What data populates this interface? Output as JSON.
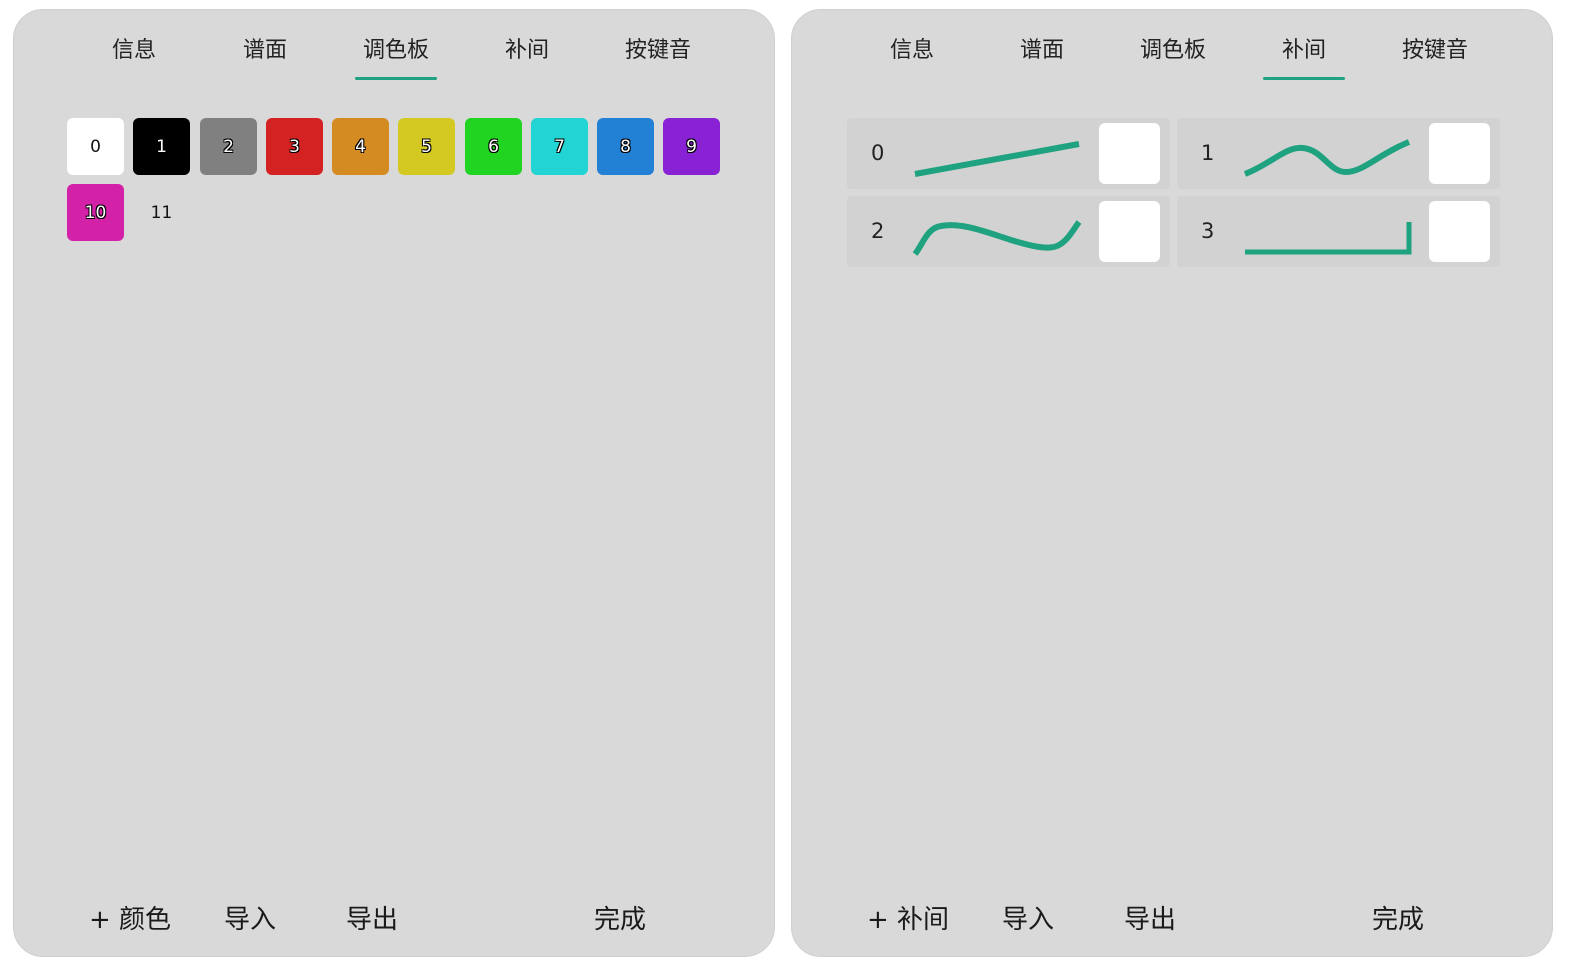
{
  "tabs": [
    "信息",
    "谱面",
    "调色板",
    "补间",
    "按键音"
  ],
  "palette_panel": {
    "active_tab": "调色板",
    "swatches": [
      {
        "label": "0",
        "color": "#ffffff"
      },
      {
        "label": "1",
        "color": "#000000"
      },
      {
        "label": "2",
        "color": "#808080"
      },
      {
        "label": "3",
        "color": "#d42222"
      },
      {
        "label": "4",
        "color": "#d48b22"
      },
      {
        "label": "5",
        "color": "#d4c822"
      },
      {
        "label": "6",
        "color": "#22d422"
      },
      {
        "label": "7",
        "color": "#22d4d4"
      },
      {
        "label": "8",
        "color": "#2281d4"
      },
      {
        "label": "9",
        "color": "#8822d4"
      },
      {
        "label": "10",
        "color": "#d422a8"
      },
      {
        "label": "11",
        "color": "transparent"
      }
    ],
    "buttons": {
      "add": "+ 颜色",
      "import": "导入",
      "export": "导出",
      "done": "完成"
    }
  },
  "tween_panel": {
    "active_tab": "补间",
    "tweens": [
      {
        "label": "0",
        "curve": "linear"
      },
      {
        "label": "1",
        "curve": "wave"
      },
      {
        "label": "2",
        "curve": "bump"
      },
      {
        "label": "3",
        "curve": "step-end"
      }
    ],
    "curve_color": "#1fa27f",
    "buttons": {
      "add": "+ 补间",
      "import": "导入",
      "export": "导出",
      "done": "完成"
    }
  }
}
